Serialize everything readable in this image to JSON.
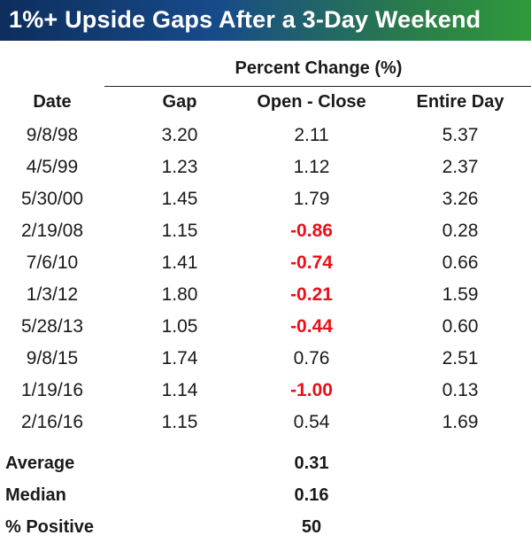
{
  "title": "1%+ Upside Gaps After a 3-Day Weekend",
  "group_header": "Percent Change (%)",
  "columns": {
    "date": "Date",
    "gap": "Gap",
    "open_close": "Open - Close",
    "entire_day": "Entire Day"
  },
  "rows": [
    {
      "date": "9/8/98",
      "gap": "3.20",
      "open_close": "2.11",
      "entire_day": "5.37",
      "negative": false
    },
    {
      "date": "4/5/99",
      "gap": "1.23",
      "open_close": "1.12",
      "entire_day": "2.37",
      "negative": false
    },
    {
      "date": "5/30/00",
      "gap": "1.45",
      "open_close": "1.79",
      "entire_day": "3.26",
      "negative": false
    },
    {
      "date": "2/19/08",
      "gap": "1.15",
      "open_close": "-0.86",
      "entire_day": "0.28",
      "negative": true
    },
    {
      "date": "7/6/10",
      "gap": "1.41",
      "open_close": "-0.74",
      "entire_day": "0.66",
      "negative": true
    },
    {
      "date": "1/3/12",
      "gap": "1.80",
      "open_close": "-0.21",
      "entire_day": "1.59",
      "negative": true
    },
    {
      "date": "5/28/13",
      "gap": "1.05",
      "open_close": "-0.44",
      "entire_day": "0.60",
      "negative": true
    },
    {
      "date": "9/8/15",
      "gap": "1.74",
      "open_close": "0.76",
      "entire_day": "2.51",
      "negative": false
    },
    {
      "date": "1/19/16",
      "gap": "1.14",
      "open_close": "-1.00",
      "entire_day": "0.13",
      "negative": true
    },
    {
      "date": "2/16/16",
      "gap": "1.15",
      "open_close": "0.54",
      "entire_day": "1.69",
      "negative": false
    }
  ],
  "summary": [
    {
      "label": "Average",
      "value": "0.31"
    },
    {
      "label": "Median",
      "value": "0.16"
    },
    {
      "label": "% Positive",
      "value": "50"
    }
  ],
  "colors": {
    "negative": "#e8101a",
    "title_text": "#ffffff",
    "title_gradient_start": "#0d2e5c",
    "title_gradient_end": "#2f9a3a"
  }
}
